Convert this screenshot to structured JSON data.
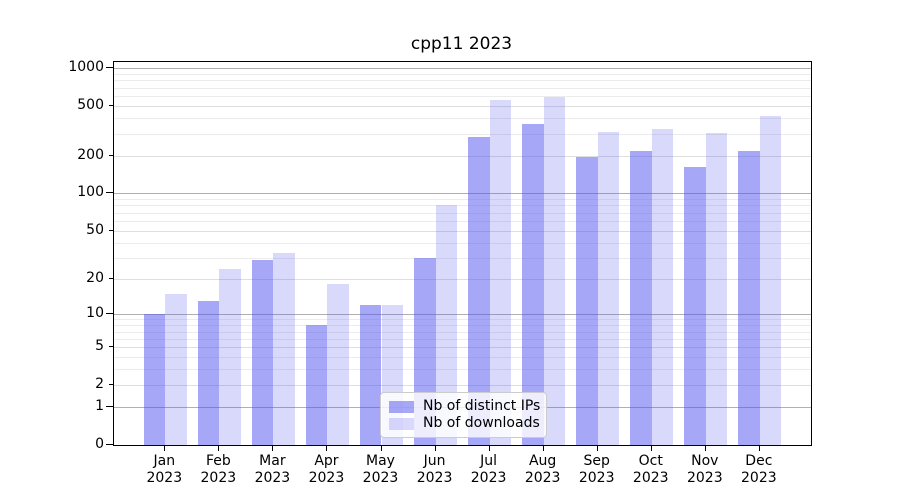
{
  "chart_data": {
    "type": "bar",
    "title": "cpp11 2023",
    "categories": [
      "Jan 2023",
      "Feb 2023",
      "Mar 2023",
      "Apr 2023",
      "May 2023",
      "Jun 2023",
      "Jul 2023",
      "Aug 2023",
      "Sep 2023",
      "Oct 2023",
      "Nov 2023",
      "Dec 2023"
    ],
    "series": [
      {
        "name": "Nb of distinct IPs",
        "color": "rgba(80,80,240,0.5)",
        "color_hex": "#a8a8f8",
        "values": [
          10,
          13,
          29,
          8,
          12,
          30,
          283,
          357,
          196,
          219,
          162,
          220
        ]
      },
      {
        "name": "Nb of downloads",
        "color": "rgba(80,80,240,0.22)",
        "color_hex": "#d8d8f8",
        "values": [
          15,
          24,
          33,
          18,
          12,
          80,
          559,
          594,
          311,
          329,
          304,
          418
        ]
      }
    ],
    "xlabel": "",
    "ylabel": "",
    "yscale": "log1p",
    "ylim": [
      0,
      1000
    ],
    "y_ticks": [
      {
        "value": 1000,
        "label": "1000",
        "major": true
      },
      {
        "value": 500,
        "label": "500",
        "major": false
      },
      {
        "value": 200,
        "label": "200",
        "major": false
      },
      {
        "value": 100,
        "label": "100",
        "major": true
      },
      {
        "value": 50,
        "label": "50",
        "major": false
      },
      {
        "value": 20,
        "label": "20",
        "major": false
      },
      {
        "value": 10,
        "label": "10",
        "major": true
      },
      {
        "value": 5,
        "label": "5",
        "major": false
      },
      {
        "value": 2,
        "label": "2",
        "major": false
      },
      {
        "value": 1,
        "label": "1",
        "major": true
      },
      {
        "value": 0,
        "label": "0",
        "major": true
      }
    ],
    "y_minor_gridlines": [
      3,
      4,
      6,
      7,
      8,
      9,
      30,
      40,
      60,
      70,
      80,
      90,
      300,
      400,
      600,
      700,
      800,
      900
    ],
    "grid": true,
    "legend_position": "lower center"
  }
}
